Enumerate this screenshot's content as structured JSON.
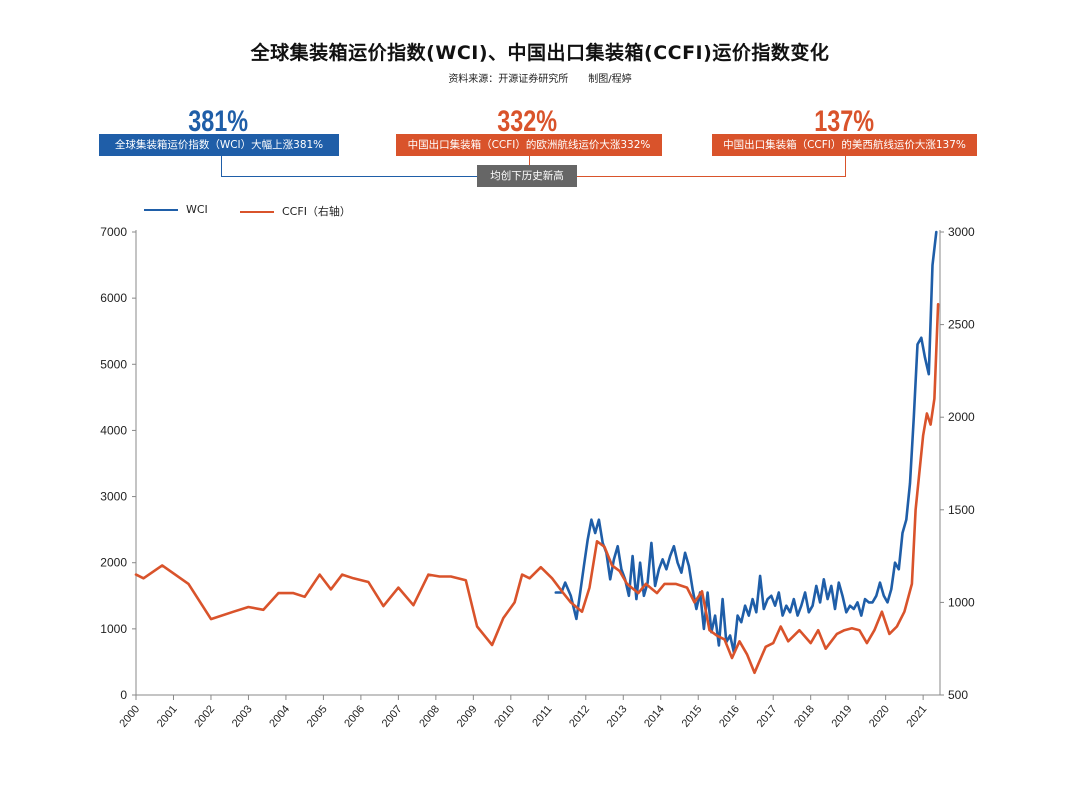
{
  "header": {
    "title": "全球集装箱运价指数(WCI)、中国出口集装箱(CCFI)运价指数变化",
    "source": "资料来源：开源证券研究所　　制图/程婷"
  },
  "callouts": [
    {
      "value": "381%",
      "text": "全球集装箱运价指数（WCI）大幅上涨381%",
      "color": "#1f5ea8"
    },
    {
      "value": "332%",
      "text": "中国出口集装箱（CCFI）的欧洲航线运价大涨332%",
      "color": "#d9532b"
    },
    {
      "value": "137%",
      "text": "中国出口集装箱（CCFI）的美西航线运价大涨137%",
      "color": "#d9532b"
    }
  ],
  "note": "均创下历史新高",
  "chart_data": {
    "type": "line",
    "legend": [
      "WCI",
      "CCFI（右轴）"
    ],
    "legend_position": "top-left",
    "x_ticks": [
      "2000",
      "2001",
      "2002",
      "2003",
      "2004",
      "2005",
      "2006",
      "2007",
      "2008",
      "2009",
      "2010",
      "2011",
      "2012",
      "2013",
      "2014",
      "2015",
      "2016",
      "2017",
      "2018",
      "2019",
      "2020",
      "2021"
    ],
    "y_left": {
      "ticks": [
        "0",
        "1000",
        "2000",
        "3000",
        "4000",
        "5000",
        "6000",
        "7000"
      ],
      "ylim": [
        0,
        7000
      ]
    },
    "y_right": {
      "ticks": [
        "500",
        "1000",
        "1500",
        "2000",
        "2500",
        "3000"
      ],
      "ylim": [
        500,
        3000
      ]
    },
    "grid": false,
    "series": [
      {
        "name": "WCI",
        "axis": "left",
        "color": "#1f5ea8",
        "x": [
          2011.2,
          2011.35,
          2011.45,
          2011.6,
          2011.75,
          2011.85,
          2011.95,
          2012.05,
          2012.15,
          2012.25,
          2012.35,
          2012.45,
          2012.55,
          2012.65,
          2012.75,
          2012.85,
          2012.95,
          2013.05,
          2013.15,
          2013.25,
          2013.35,
          2013.45,
          2013.55,
          2013.65,
          2013.75,
          2013.85,
          2013.95,
          2014.05,
          2014.15,
          2014.25,
          2014.35,
          2014.45,
          2014.55,
          2014.65,
          2014.75,
          2014.85,
          2014.95,
          2015.05,
          2015.15,
          2015.25,
          2015.35,
          2015.45,
          2015.55,
          2015.65,
          2015.75,
          2015.85,
          2015.95,
          2016.05,
          2016.15,
          2016.25,
          2016.35,
          2016.45,
          2016.55,
          2016.65,
          2016.75,
          2016.85,
          2016.95,
          2017.05,
          2017.15,
          2017.25,
          2017.35,
          2017.45,
          2017.55,
          2017.65,
          2017.75,
          2017.85,
          2017.95,
          2018.05,
          2018.15,
          2018.25,
          2018.35,
          2018.45,
          2018.55,
          2018.65,
          2018.75,
          2018.85,
          2018.95,
          2019.05,
          2019.15,
          2019.25,
          2019.35,
          2019.45,
          2019.55,
          2019.65,
          2019.75,
          2019.85,
          2019.95,
          2020.05,
          2020.15,
          2020.25,
          2020.35,
          2020.45,
          2020.55,
          2020.65,
          2020.75,
          2020.85,
          2020.95,
          2021.05,
          2021.15,
          2021.25,
          2021.35
        ],
        "y": [
          1550,
          1550,
          1700,
          1500,
          1150,
          1550,
          1950,
          2350,
          2650,
          2450,
          2650,
          2300,
          2150,
          1750,
          2050,
          2250,
          1900,
          1750,
          1500,
          2100,
          1450,
          2000,
          1500,
          1700,
          2300,
          1650,
          1900,
          2050,
          1900,
          2100,
          2250,
          2000,
          1850,
          2150,
          1950,
          1600,
          1300,
          1550,
          1000,
          1550,
          950,
          1200,
          750,
          1450,
          800,
          900,
          650,
          1200,
          1100,
          1350,
          1200,
          1450,
          1250,
          1800,
          1300,
          1450,
          1500,
          1350,
          1550,
          1200,
          1350,
          1250,
          1450,
          1200,
          1350,
          1550,
          1250,
          1350,
          1650,
          1400,
          1750,
          1450,
          1650,
          1300,
          1700,
          1500,
          1250,
          1350,
          1300,
          1400,
          1200,
          1450,
          1400,
          1400,
          1500,
          1700,
          1500,
          1400,
          1600,
          2000,
          1900,
          2450,
          2650,
          3200,
          4200,
          5300,
          5400,
          5100,
          4850,
          6500,
          7000
        ]
      },
      {
        "name": "CCFI（右轴）",
        "axis": "right",
        "color": "#d9532b",
        "x": [
          2000.0,
          2000.2,
          2000.7,
          2001.4,
          2002.0,
          2002.6,
          2003.0,
          2003.4,
          2003.8,
          2004.2,
          2004.5,
          2004.8,
          2004.9,
          2005.2,
          2005.5,
          2005.8,
          2006.2,
          2006.6,
          2007.0,
          2007.4,
          2007.8,
          2008.1,
          2008.4,
          2008.8,
          2009.1,
          2009.5,
          2009.8,
          2010.1,
          2010.3,
          2010.5,
          2010.8,
          2011.1,
          2011.4,
          2011.6,
          2011.9,
          2012.1,
          2012.3,
          2012.5,
          2012.7,
          2012.9,
          2013.1,
          2013.4,
          2013.6,
          2013.9,
          2014.1,
          2014.4,
          2014.7,
          2014.9,
          2015.1,
          2015.3,
          2015.5,
          2015.7,
          2015.9,
          2016.1,
          2016.3,
          2016.5,
          2016.8,
          2017.0,
          2017.2,
          2017.4,
          2017.7,
          2018.0,
          2018.2,
          2018.4,
          2018.7,
          2018.9,
          2019.1,
          2019.3,
          2019.5,
          2019.7,
          2019.9,
          2020.1,
          2020.3,
          2020.5,
          2020.7,
          2020.8,
          2021.0,
          2021.1,
          2021.2,
          2021.3,
          2021.4
        ],
        "y": [
          1150,
          1130,
          1200,
          1100,
          910,
          950,
          975,
          960,
          1050,
          1050,
          1030,
          1120,
          1150,
          1070,
          1150,
          1130,
          1110,
          980,
          1080,
          985,
          1150,
          1140,
          1140,
          1120,
          870,
          770,
          915,
          1000,
          1150,
          1130,
          1190,
          1130,
          1050,
          1000,
          950,
          1080,
          1330,
          1300,
          1200,
          1170,
          1100,
          1050,
          1100,
          1050,
          1100,
          1100,
          1080,
          1000,
          1060,
          850,
          820,
          800,
          700,
          790,
          720,
          620,
          760,
          780,
          870,
          790,
          850,
          780,
          850,
          750,
          830,
          850,
          860,
          850,
          780,
          850,
          950,
          830,
          870,
          950,
          1100,
          1500,
          1900,
          2020,
          1960,
          2100,
          2610
        ]
      }
    ]
  }
}
